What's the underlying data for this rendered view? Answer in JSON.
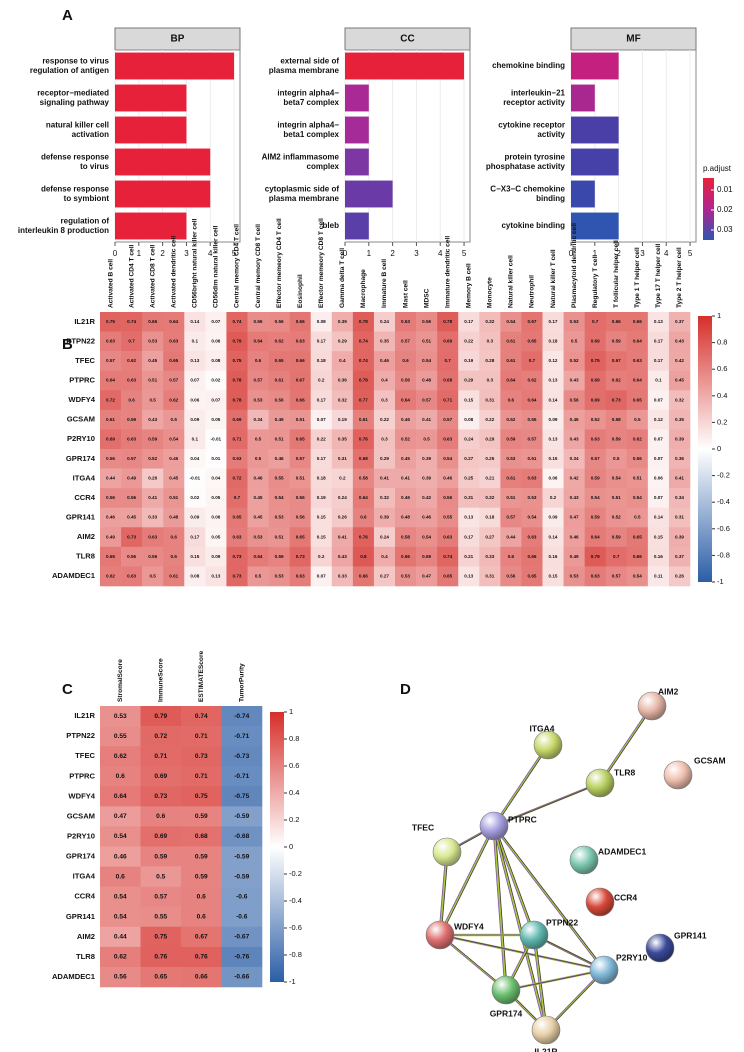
{
  "panel_labels": [
    "A",
    "B",
    "C",
    "D"
  ],
  "chart_data": [
    {
      "type": "bar",
      "orientation": "horizontal",
      "facet": "BP",
      "categories": [
        "response to virus\nregulation of antigen",
        "receptor−mediated\nsignaling pathway",
        "natural killer cell\nactivation",
        "defense response\nto virus",
        "defense response\nto symbiont",
        "regulation of\ninterleukin 8 production"
      ],
      "values": [
        5,
        3,
        3,
        4,
        4,
        3
      ],
      "colors": [
        "#e8213a",
        "#e8213a",
        "#e8213a",
        "#e8213a",
        "#e8213a",
        "#e8213a"
      ],
      "xlim": [
        0,
        5.25
      ],
      "xticks": [
        0,
        1,
        2,
        3,
        4,
        5
      ]
    },
    {
      "type": "bar",
      "orientation": "horizontal",
      "facet": "CC",
      "categories": [
        "external side of\nplasma membrane",
        "integrin alpha4−\nbeta7 complex",
        "integrin alpha4−\nbeta1 complex",
        "AIM2 inflammasome\ncomplex",
        "cytoplasmic side of\nplasma membrane",
        "bleb"
      ],
      "values": [
        5,
        1,
        1,
        1,
        2,
        1
      ],
      "colors": [
        "#e8213a",
        "#a92a96",
        "#a42b98",
        "#7c37a2",
        "#6a3ba6",
        "#5a3fa8"
      ],
      "xlim": [
        0,
        5.25
      ],
      "xticks": [
        0,
        1,
        2,
        3,
        4,
        5
      ]
    },
    {
      "type": "bar",
      "orientation": "horizontal",
      "facet": "MF",
      "categories": [
        "chemokine binding",
        "interleukin−21\nreceptor activity",
        "cytokine receptor\nactivity",
        "protein tyrosine\nphosphatase activity",
        "C−X3−C chemokine\nbinding",
        "cytokine binding"
      ],
      "values": [
        2,
        1,
        2,
        2,
        1,
        2
      ],
      "colors": [
        "#c4207f",
        "#a8288f",
        "#4a3fa6",
        "#4541a8",
        "#3b48ab",
        "#2f55b0"
      ],
      "xlim": [
        0,
        5.25
      ],
      "xticks": [
        0,
        1,
        2,
        3,
        4,
        5
      ]
    },
    {
      "type": "heatmap",
      "rows": [
        "IL21R",
        "PTPN22",
        "TFEC",
        "PTPRC",
        "WDFY4",
        "GCSAM",
        "P2RY10",
        "GPR174",
        "ITGA4",
        "CCR4",
        "GPR141",
        "AIM2",
        "TLR8",
        "ADAMDEC1"
      ],
      "columns": [
        "Activated B cell",
        "Activated CD4 T cell",
        "Activated CD8 T cell",
        "Activated dendritic cell",
        "CD56bright natural killer cell",
        "CD56dim natural killer cell",
        "Central memory CD4 T cell",
        "Central memory CD8 T cell",
        "Effector memeory CD4 T cell",
        "Eosinophil",
        "Effector memeory CD8 T cell",
        "Gamma delta T cell",
        "Macrophage",
        "Immature  B cell",
        "Mast cell",
        "MDSC",
        "Immature dendritic cell",
        "Memory B cell",
        "Monocyte",
        "Natural killer cell",
        "Neutrophil",
        "Natural killer T cell",
        "Plasmacytoid dendritic cell",
        "Regulatory T cell",
        "T follicular helper cell",
        "Type 1 T helper cell",
        "Type 17 T helper cell",
        "Type 2 T helper cell"
      ],
      "values": [
        [
          0.75,
          0.74,
          0.65,
          0.64,
          0.14,
          0.07,
          0.74,
          0.55,
          0.56,
          0.66,
          0.08,
          0.39,
          0.78,
          0.24,
          0.63,
          0.56,
          0.78,
          0.17,
          0.32,
          0.54,
          0.67,
          0.17,
          0.53,
          0.7,
          0.66,
          0.66,
          0.13,
          0.37
        ],
        [
          0.63,
          0.7,
          0.53,
          0.63,
          0.1,
          0.06,
          0.79,
          0.64,
          0.62,
          0.63,
          0.17,
          0.29,
          0.74,
          0.35,
          0.57,
          0.51,
          0.69,
          0.22,
          0.3,
          0.61,
          0.65,
          0.18,
          0.5,
          0.69,
          0.59,
          0.64,
          0.17,
          0.43
        ],
        [
          0.57,
          0.62,
          0.45,
          0.65,
          0.13,
          0.08,
          0.75,
          0.6,
          0.65,
          0.66,
          0.18,
          0.4,
          0.74,
          0.46,
          0.6,
          0.54,
          0.7,
          0.19,
          0.28,
          0.61,
          0.7,
          0.12,
          0.52,
          0.75,
          0.67,
          0.63,
          0.17,
          0.42
        ],
        [
          0.64,
          0.63,
          0.51,
          0.57,
          0.07,
          0.02,
          0.78,
          0.57,
          0.61,
          0.67,
          0.2,
          0.36,
          0.78,
          0.4,
          0.56,
          0.48,
          0.68,
          0.29,
          0.3,
          0.64,
          0.62,
          0.13,
          0.43,
          0.69,
          0.62,
          0.64,
          0.1,
          0.45
        ],
        [
          0.72,
          0.6,
          0.5,
          0.62,
          0.06,
          0.07,
          0.78,
          0.53,
          0.56,
          0.66,
          0.17,
          0.32,
          0.77,
          0.3,
          0.64,
          0.57,
          0.71,
          0.15,
          0.31,
          0.6,
          0.64,
          0.14,
          0.56,
          0.69,
          0.73,
          0.65,
          0.07,
          0.32
        ],
        [
          0.61,
          0.59,
          0.43,
          0.5,
          0.09,
          0.05,
          0.69,
          0.34,
          0.49,
          0.51,
          0.07,
          0.19,
          0.61,
          0.22,
          0.46,
          0.41,
          0.57,
          0.08,
          0.22,
          0.52,
          0.55,
          0.09,
          0.46,
          0.52,
          0.58,
          0.5,
          0.12,
          0.35
        ],
        [
          0.69,
          0.63,
          0.59,
          0.54,
          0.1,
          -0.01,
          0.71,
          0.5,
          0.51,
          0.65,
          0.22,
          0.35,
          0.76,
          0.3,
          0.52,
          0.5,
          0.63,
          0.24,
          0.29,
          0.59,
          0.57,
          0.13,
          0.43,
          0.63,
          0.59,
          0.62,
          0.07,
          0.39
        ],
        [
          0.56,
          0.57,
          0.52,
          0.46,
          0.04,
          0.01,
          0.63,
          0.5,
          0.46,
          0.57,
          0.17,
          0.31,
          0.68,
          0.29,
          0.45,
          0.39,
          0.54,
          0.27,
          0.25,
          0.53,
          0.51,
          0.15,
          0.34,
          0.57,
          0.5,
          0.56,
          0.07,
          0.36
        ],
        [
          0.44,
          0.49,
          0.26,
          0.45,
          -0.01,
          0.04,
          0.72,
          0.46,
          0.55,
          0.51,
          0.18,
          0.2,
          0.58,
          0.41,
          0.41,
          0.39,
          0.46,
          0.25,
          0.21,
          0.61,
          0.63,
          0.06,
          0.42,
          0.59,
          0.54,
          0.51,
          0.06,
          0.41
        ],
        [
          0.56,
          0.56,
          0.41,
          0.51,
          0.02,
          0.05,
          0.7,
          0.45,
          0.54,
          0.56,
          0.19,
          0.24,
          0.64,
          0.32,
          0.46,
          0.42,
          0.56,
          0.31,
          0.32,
          0.51,
          0.53,
          0.2,
          0.43,
          0.54,
          0.51,
          0.54,
          0.07,
          0.34
        ],
        [
          0.46,
          0.45,
          0.33,
          0.48,
          0.09,
          0.06,
          0.65,
          0.45,
          0.53,
          0.56,
          0.15,
          0.26,
          0.6,
          0.39,
          0.48,
          0.46,
          0.55,
          0.13,
          0.18,
          0.57,
          0.54,
          0.09,
          0.47,
          0.59,
          0.52,
          0.5,
          0.14,
          0.31
        ],
        [
          0.49,
          0.73,
          0.63,
          0.6,
          0.17,
          0.05,
          0.63,
          0.53,
          0.51,
          0.65,
          0.15,
          0.41,
          0.76,
          0.24,
          0.58,
          0.54,
          0.63,
          0.17,
          0.27,
          0.44,
          0.63,
          0.14,
          0.46,
          0.64,
          0.59,
          0.65,
          0.15,
          0.39
        ],
        [
          0.65,
          0.56,
          0.56,
          0.6,
          0.15,
          0.09,
          0.73,
          0.64,
          0.59,
          0.73,
          0.2,
          0.43,
          0.8,
          0.4,
          0.66,
          0.59,
          0.74,
          0.21,
          0.33,
          0.6,
          0.66,
          0.16,
          0.49,
          0.79,
          0.7,
          0.66,
          0.16,
          0.37
        ],
        [
          0.62,
          0.63,
          0.5,
          0.61,
          0.08,
          0.13,
          0.73,
          0.5,
          0.53,
          0.63,
          0.07,
          0.33,
          0.66,
          0.27,
          0.53,
          0.47,
          0.65,
          0.13,
          0.31,
          0.56,
          0.65,
          0.15,
          0.53,
          0.63,
          0.57,
          0.54,
          0.11,
          0.26
        ]
      ],
      "zlim": [
        -1,
        1
      ],
      "colorbar_ticks": [
        1,
        0.8,
        0.6,
        0.4,
        0.2,
        0,
        -0.2,
        -0.4,
        -0.6,
        -0.8,
        -1
      ],
      "colors": [
        "#2b5ea6",
        "#ffffff",
        "#d62f2a"
      ]
    },
    {
      "type": "heatmap",
      "rows": [
        "IL21R",
        "PTPN22",
        "TFEC",
        "PTPRC",
        "WDFY4",
        "GCSAM",
        "P2RY10",
        "GPR174",
        "ITGA4",
        "CCR4",
        "GPR141",
        "AIM2",
        "TLR8",
        "ADAMDEC1"
      ],
      "columns": [
        "StromalScore",
        "ImmuneScore",
        "ESTIMATEScore",
        "TumorPurity"
      ],
      "values": [
        [
          0.53,
          0.79,
          0.74,
          -0.74
        ],
        [
          0.55,
          0.72,
          0.71,
          -0.71
        ],
        [
          0.62,
          0.71,
          0.73,
          -0.73
        ],
        [
          0.6,
          0.69,
          0.71,
          -0.71
        ],
        [
          0.64,
          0.73,
          0.75,
          -0.75
        ],
        [
          0.47,
          0.6,
          0.59,
          -0.59
        ],
        [
          0.54,
          0.69,
          0.68,
          -0.68
        ],
        [
          0.46,
          0.59,
          0.59,
          -0.59
        ],
        [
          0.6,
          0.5,
          0.59,
          -0.59
        ],
        [
          0.54,
          0.57,
          0.6,
          -0.6
        ],
        [
          0.54,
          0.55,
          0.6,
          -0.6
        ],
        [
          0.44,
          0.75,
          0.67,
          -0.67
        ],
        [
          0.62,
          0.76,
          0.76,
          -0.76
        ],
        [
          0.56,
          0.65,
          0.66,
          -0.66
        ]
      ],
      "zlim": [
        -1,
        1
      ],
      "colorbar_ticks": [
        1,
        0.8,
        0.6,
        0.4,
        0.2,
        0,
        -0.2,
        -0.4,
        -0.6,
        -0.8,
        -1
      ],
      "colors": [
        "#2b5ea6",
        "#ffffff",
        "#d62f2a"
      ]
    }
  ],
  "p_adjust_legend": {
    "title": "p.adjust",
    "ticks": [
      0.01,
      0.02,
      0.03
    ],
    "lim": [
      0.004,
      0.035
    ],
    "colors": [
      "#e8213a",
      "#b0268f",
      "#2f55b0"
    ]
  },
  "network": {
    "nodes": [
      {
        "label": "AIM2"
      },
      {
        "label": "ITGA4"
      },
      {
        "label": "TLR8"
      },
      {
        "label": "GCSAM"
      },
      {
        "label": "PTPRC"
      },
      {
        "label": "ADAMDEC1"
      },
      {
        "label": "TFEC"
      },
      {
        "label": "CCR4"
      },
      {
        "label": "WDFY4"
      },
      {
        "label": "PTPN22"
      },
      {
        "label": "GPR141"
      },
      {
        "label": "P2RY10"
      },
      {
        "label": "GPR174"
      },
      {
        "label": "IL21R"
      }
    ]
  }
}
